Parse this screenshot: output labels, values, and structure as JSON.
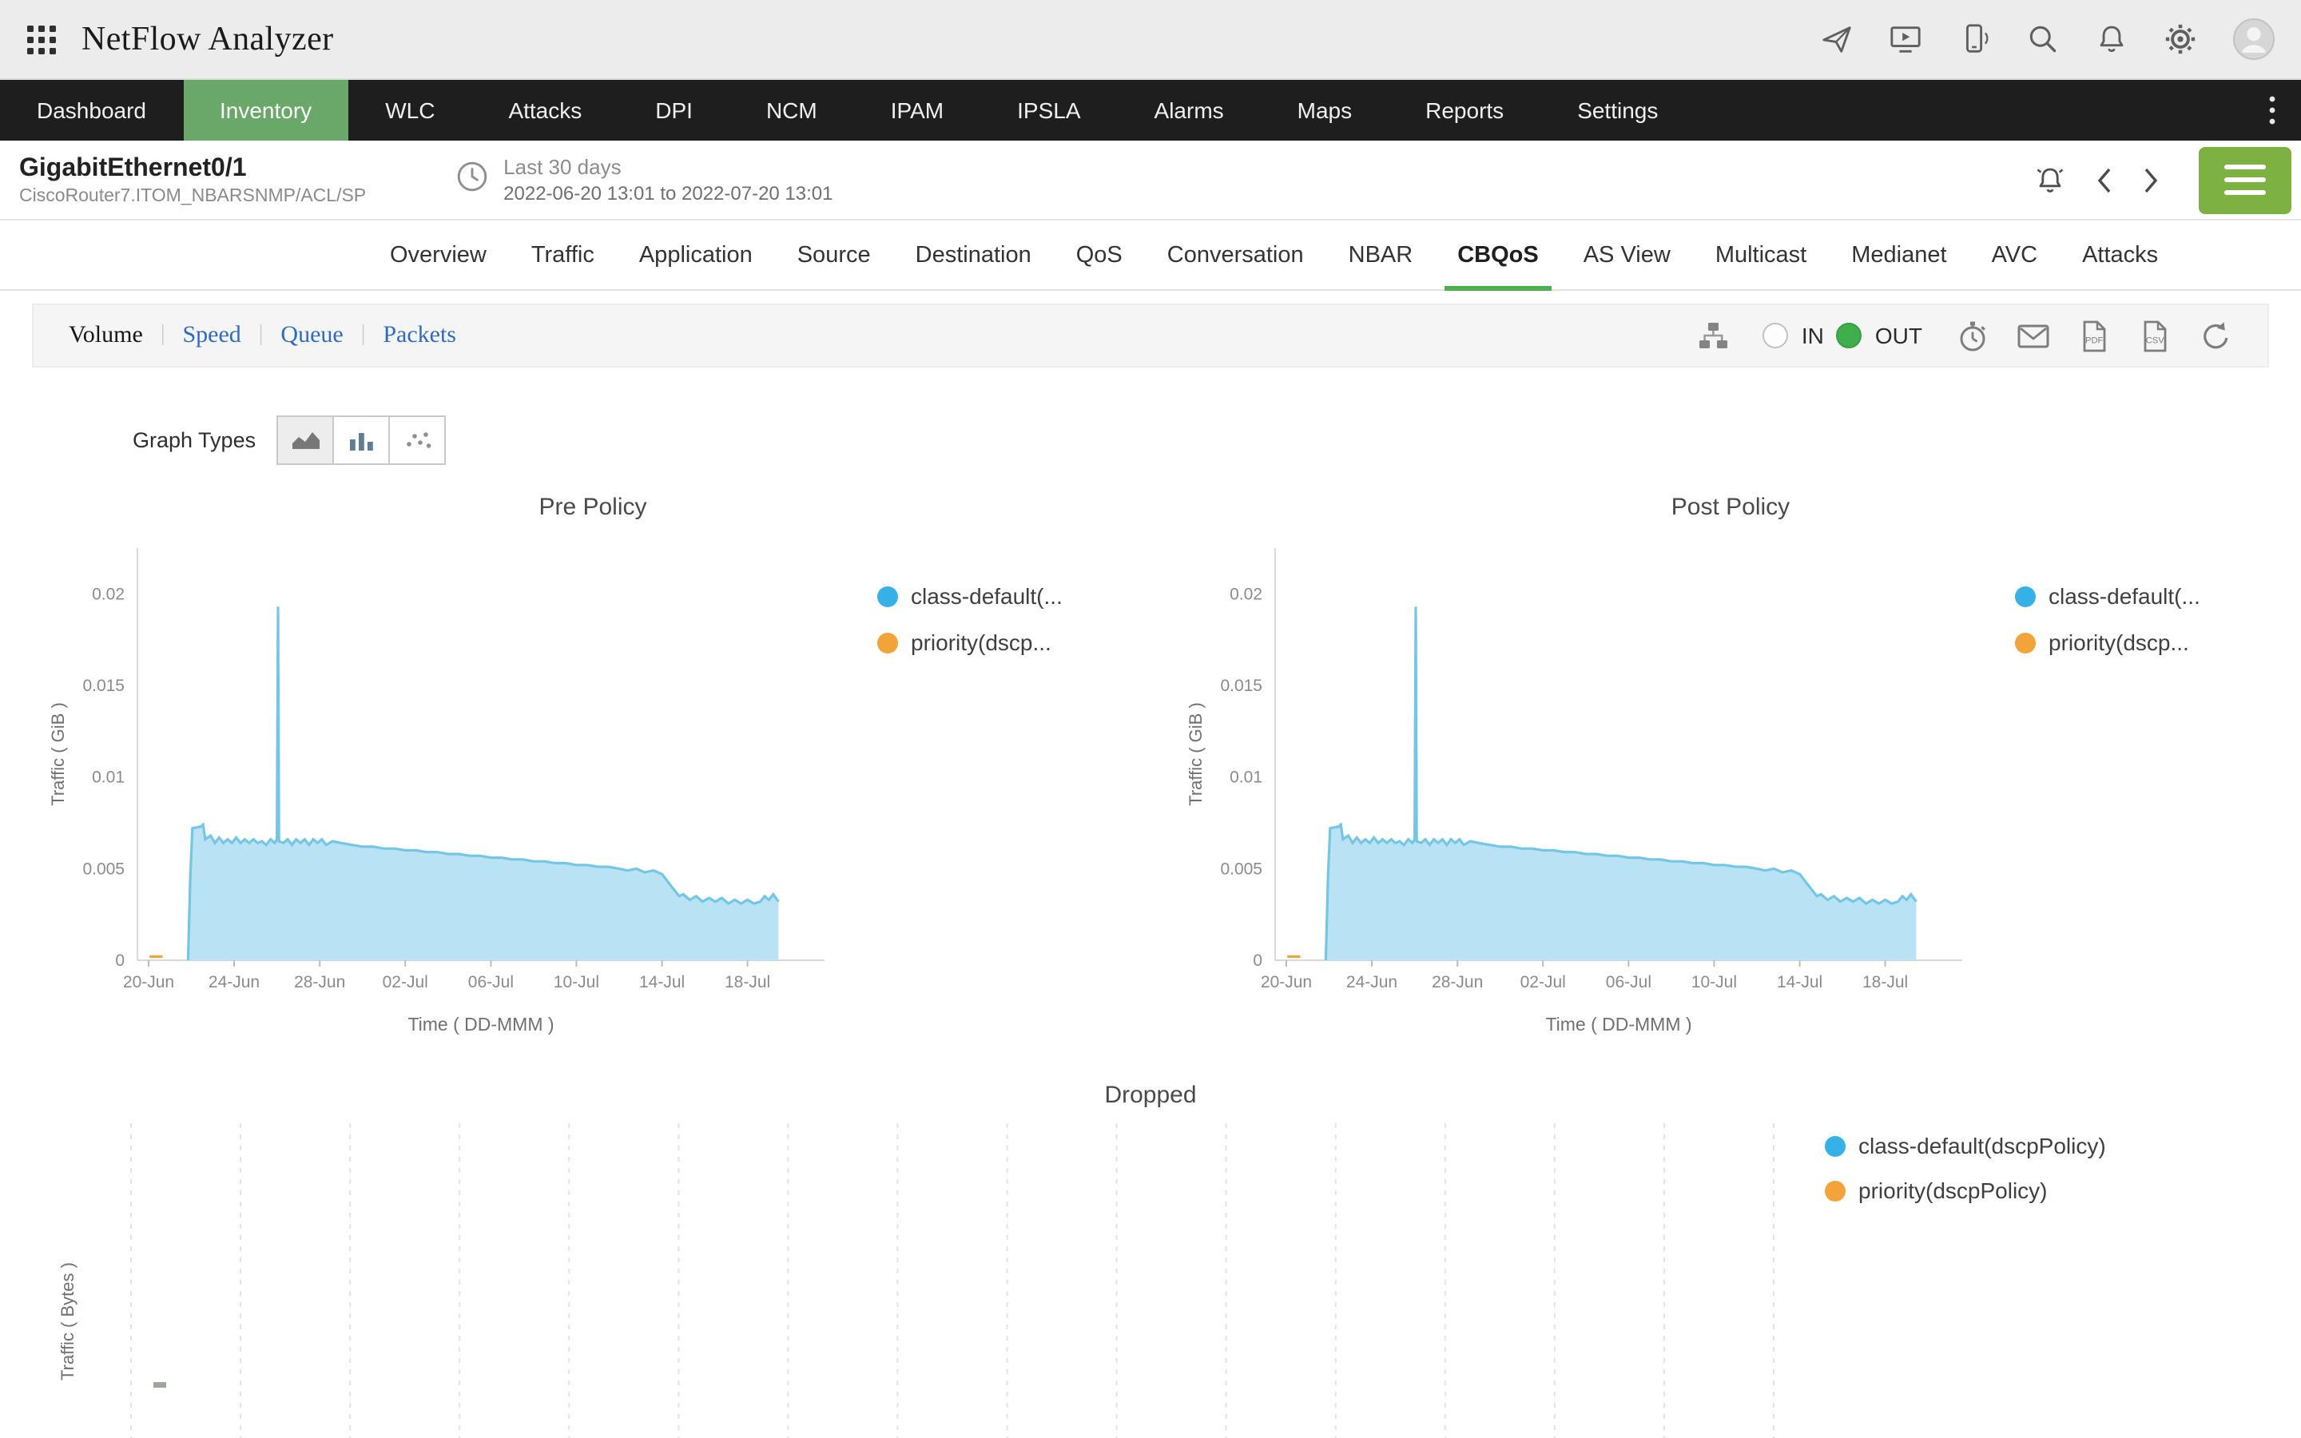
{
  "header": {
    "app_title": "NetFlow Analyzer",
    "icons": [
      "apps-grid",
      "send",
      "screen-share",
      "mobile",
      "search",
      "notifications",
      "settings",
      "user-avatar"
    ]
  },
  "nav": {
    "items": [
      {
        "label": "Dashboard",
        "active": false
      },
      {
        "label": "Inventory",
        "active": true
      },
      {
        "label": "WLC",
        "active": false
      },
      {
        "label": "Attacks",
        "active": false
      },
      {
        "label": "DPI",
        "active": false
      },
      {
        "label": "NCM",
        "active": false
      },
      {
        "label": "IPAM",
        "active": false
      },
      {
        "label": "IPSLA",
        "active": false
      },
      {
        "label": "Alarms",
        "active": false
      },
      {
        "label": "Maps",
        "active": false
      },
      {
        "label": "Reports",
        "active": false
      },
      {
        "label": "Settings",
        "active": false
      }
    ]
  },
  "subheader": {
    "interface_name": "GigabitEthernet0/1",
    "device_path": "CiscoRouter7.ITOM_NBARSNMP/ACL/SP",
    "time_range_label": "Last 30 days",
    "time_range_detail": "2022-06-20 13:01 to 2022-07-20 13:01"
  },
  "tabs": {
    "items": [
      {
        "label": "Overview",
        "active": false
      },
      {
        "label": "Traffic",
        "active": false
      },
      {
        "label": "Application",
        "active": false
      },
      {
        "label": "Source",
        "active": false
      },
      {
        "label": "Destination",
        "active": false
      },
      {
        "label": "QoS",
        "active": false
      },
      {
        "label": "Conversation",
        "active": false
      },
      {
        "label": "NBAR",
        "active": false
      },
      {
        "label": "CBQoS",
        "active": true
      },
      {
        "label": "AS View",
        "active": false
      },
      {
        "label": "Multicast",
        "active": false
      },
      {
        "label": "Medianet",
        "active": false
      },
      {
        "label": "AVC",
        "active": false
      },
      {
        "label": "Attacks",
        "active": false
      }
    ]
  },
  "toolbar": {
    "metrics": [
      {
        "label": "Volume",
        "active": true
      },
      {
        "label": "Speed",
        "active": false
      },
      {
        "label": "Queue",
        "active": false
      },
      {
        "label": "Packets",
        "active": false
      }
    ],
    "direction": {
      "in_label": "IN",
      "out_label": "OUT",
      "selected": "OUT"
    }
  },
  "graph_types_label": "Graph Types",
  "colors": {
    "accent_green": "#69a869",
    "tab_underline": "#4caf50",
    "series_blue": "#35b1e7",
    "series_blue_fill": "#b9e3f4",
    "series_orange": "#f2a33a",
    "link_blue": "#2f6bc4"
  },
  "chart_data": [
    {
      "type": "area",
      "title": "Pre Policy",
      "xlabel": "Time ( DD-MMM )",
      "ylabel": "Traffic ( GiB )",
      "ylim": [
        0,
        0.0225
      ],
      "grid": "off",
      "legend_position": "right",
      "yticks": [
        {
          "v": 0,
          "label": "0"
        },
        {
          "v": 0.005,
          "label": "0.005"
        },
        {
          "v": 0.01,
          "label": "0.01"
        },
        {
          "v": 0.015,
          "label": "0.015"
        },
        {
          "v": 0.02,
          "label": "0.02"
        }
      ],
      "xticks": [
        {
          "v": 0,
          "label": "20-Jun"
        },
        {
          "v": 4,
          "label": "24-Jun"
        },
        {
          "v": 8,
          "label": "28-Jun"
        },
        {
          "v": 12,
          "label": "02-Jul"
        },
        {
          "v": 16,
          "label": "06-Jul"
        },
        {
          "v": 20,
          "label": "10-Jul"
        },
        {
          "v": 24,
          "label": "14-Jul"
        },
        {
          "v": 28,
          "label": "18-Jul"
        }
      ],
      "legend": [
        {
          "label": "class-default(...",
          "color": "#35b1e7"
        },
        {
          "label": "priority(dscp...",
          "color": "#f2a33a"
        }
      ],
      "series": [
        {
          "name": "class-default",
          "color": "#74c6e6",
          "fill": "#b9e3f4",
          "points": [
            [
              1.85,
              0
            ],
            [
              1.95,
              0.0046
            ],
            [
              2.05,
              0.0072
            ],
            [
              2.45,
              0.0073
            ],
            [
              2.55,
              0.0074
            ],
            [
              2.65,
              0.0066
            ],
            [
              2.9,
              0.0068
            ],
            [
              3.1,
              0.0064
            ],
            [
              3.3,
              0.0067
            ],
            [
              3.5,
              0.0064
            ],
            [
              3.7,
              0.0066
            ],
            [
              3.9,
              0.0064
            ],
            [
              4.1,
              0.0067
            ],
            [
              4.3,
              0.0064
            ],
            [
              4.5,
              0.0066
            ],
            [
              4.7,
              0.0064
            ],
            [
              4.9,
              0.0066
            ],
            [
              5.1,
              0.0064
            ],
            [
              5.3,
              0.0065
            ],
            [
              5.5,
              0.0063
            ],
            [
              5.7,
              0.0066
            ],
            [
              5.9,
              0.0064
            ],
            [
              6,
              0.0066
            ],
            [
              6.05,
              0.0193
            ],
            [
              6.1,
              0.0065
            ],
            [
              6.3,
              0.0064
            ],
            [
              6.5,
              0.0066
            ],
            [
              6.7,
              0.0063
            ],
            [
              6.9,
              0.0066
            ],
            [
              7.1,
              0.0064
            ],
            [
              7.3,
              0.0066
            ],
            [
              7.5,
              0.0063
            ],
            [
              7.7,
              0.0066
            ],
            [
              7.9,
              0.0064
            ],
            [
              8.1,
              0.0066
            ],
            [
              8.3,
              0.0063
            ],
            [
              8.6,
              0.0065
            ],
            [
              9,
              0.0064
            ],
            [
              9.5,
              0.0063
            ],
            [
              10,
              0.0062
            ],
            [
              10.5,
              0.0062
            ],
            [
              11,
              0.0061
            ],
            [
              11.5,
              0.0061
            ],
            [
              12,
              0.006
            ],
            [
              12.5,
              0.006
            ],
            [
              13,
              0.0059
            ],
            [
              13.5,
              0.0059
            ],
            [
              14,
              0.0058
            ],
            [
              14.5,
              0.0058
            ],
            [
              15,
              0.0057
            ],
            [
              15.5,
              0.0057
            ],
            [
              16,
              0.0056
            ],
            [
              16.5,
              0.0056
            ],
            [
              17,
              0.0055
            ],
            [
              17.5,
              0.0055
            ],
            [
              18,
              0.0054
            ],
            [
              18.5,
              0.0054
            ],
            [
              19,
              0.0053
            ],
            [
              19.5,
              0.0053
            ],
            [
              20,
              0.0052
            ],
            [
              20.5,
              0.0052
            ],
            [
              21,
              0.0051
            ],
            [
              21.5,
              0.0051
            ],
            [
              22,
              0.005
            ],
            [
              22.4,
              0.0049
            ],
            [
              22.8,
              0.005
            ],
            [
              23.2,
              0.0048
            ],
            [
              23.6,
              0.0049
            ],
            [
              24,
              0.0047
            ],
            [
              24.2,
              0.0044
            ],
            [
              24.4,
              0.0041
            ],
            [
              24.6,
              0.0038
            ],
            [
              24.8,
              0.0035
            ],
            [
              25,
              0.0036
            ],
            [
              25.3,
              0.0033
            ],
            [
              25.6,
              0.0035
            ],
            [
              25.9,
              0.0032
            ],
            [
              26.2,
              0.0034
            ],
            [
              26.5,
              0.0032
            ],
            [
              26.8,
              0.0034
            ],
            [
              27.1,
              0.0031
            ],
            [
              27.4,
              0.0033
            ],
            [
              27.7,
              0.0031
            ],
            [
              28,
              0.0033
            ],
            [
              28.3,
              0.0031
            ],
            [
              28.6,
              0.0032
            ],
            [
              28.8,
              0.0035
            ],
            [
              29,
              0.0033
            ],
            [
              29.2,
              0.0036
            ],
            [
              29.45,
              0.0032
            ]
          ]
        },
        {
          "name": "priority",
          "color": "#f2a33a",
          "fill": null,
          "points": [
            [
              0.05,
              0.0002
            ],
            [
              0.65,
              0.0002
            ]
          ]
        }
      ]
    },
    {
      "type": "area",
      "title": "Post Policy",
      "xlabel": "Time ( DD-MMM )",
      "ylabel": "Traffic ( GiB )",
      "ylim": [
        0,
        0.0225
      ],
      "grid": "off",
      "legend_position": "right",
      "yticks": [
        {
          "v": 0,
          "label": "0"
        },
        {
          "v": 0.005,
          "label": "0.005"
        },
        {
          "v": 0.01,
          "label": "0.01"
        },
        {
          "v": 0.015,
          "label": "0.015"
        },
        {
          "v": 0.02,
          "label": "0.02"
        }
      ],
      "xticks": [
        {
          "v": 0,
          "label": "20-Jun"
        },
        {
          "v": 4,
          "label": "24-Jun"
        },
        {
          "v": 8,
          "label": "28-Jun"
        },
        {
          "v": 12,
          "label": "02-Jul"
        },
        {
          "v": 16,
          "label": "06-Jul"
        },
        {
          "v": 20,
          "label": "10-Jul"
        },
        {
          "v": 24,
          "label": "14-Jul"
        },
        {
          "v": 28,
          "label": "18-Jul"
        }
      ],
      "legend": [
        {
          "label": "class-default(...",
          "color": "#35b1e7"
        },
        {
          "label": "priority(dscp...",
          "color": "#f2a33a"
        }
      ],
      "series": [
        {
          "name": "class-default",
          "color": "#74c6e6",
          "fill": "#b9e3f4",
          "points": [
            [
              1.85,
              0
            ],
            [
              1.95,
              0.0046
            ],
            [
              2.05,
              0.0072
            ],
            [
              2.45,
              0.0073
            ],
            [
              2.55,
              0.0074
            ],
            [
              2.65,
              0.0066
            ],
            [
              2.9,
              0.0068
            ],
            [
              3.1,
              0.0064
            ],
            [
              3.3,
              0.0067
            ],
            [
              3.5,
              0.0064
            ],
            [
              3.7,
              0.0066
            ],
            [
              3.9,
              0.0064
            ],
            [
              4.1,
              0.0067
            ],
            [
              4.3,
              0.0064
            ],
            [
              4.5,
              0.0066
            ],
            [
              4.7,
              0.0064
            ],
            [
              4.9,
              0.0066
            ],
            [
              5.1,
              0.0064
            ],
            [
              5.3,
              0.0065
            ],
            [
              5.5,
              0.0063
            ],
            [
              5.7,
              0.0066
            ],
            [
              5.9,
              0.0064
            ],
            [
              6,
              0.0066
            ],
            [
              6.05,
              0.0193
            ],
            [
              6.1,
              0.0065
            ],
            [
              6.3,
              0.0064
            ],
            [
              6.5,
              0.0066
            ],
            [
              6.7,
              0.0063
            ],
            [
              6.9,
              0.0066
            ],
            [
              7.1,
              0.0064
            ],
            [
              7.3,
              0.0066
            ],
            [
              7.5,
              0.0063
            ],
            [
              7.7,
              0.0066
            ],
            [
              7.9,
              0.0064
            ],
            [
              8.1,
              0.0066
            ],
            [
              8.3,
              0.0063
            ],
            [
              8.6,
              0.0065
            ],
            [
              9,
              0.0064
            ],
            [
              9.5,
              0.0063
            ],
            [
              10,
              0.0062
            ],
            [
              10.5,
              0.0062
            ],
            [
              11,
              0.0061
            ],
            [
              11.5,
              0.0061
            ],
            [
              12,
              0.006
            ],
            [
              12.5,
              0.006
            ],
            [
              13,
              0.0059
            ],
            [
              13.5,
              0.0059
            ],
            [
              14,
              0.0058
            ],
            [
              14.5,
              0.0058
            ],
            [
              15,
              0.0057
            ],
            [
              15.5,
              0.0057
            ],
            [
              16,
              0.0056
            ],
            [
              16.5,
              0.0056
            ],
            [
              17,
              0.0055
            ],
            [
              17.5,
              0.0055
            ],
            [
              18,
              0.0054
            ],
            [
              18.5,
              0.0054
            ],
            [
              19,
              0.0053
            ],
            [
              19.5,
              0.0053
            ],
            [
              20,
              0.0052
            ],
            [
              20.5,
              0.0052
            ],
            [
              21,
              0.0051
            ],
            [
              21.5,
              0.0051
            ],
            [
              22,
              0.005
            ],
            [
              22.4,
              0.0049
            ],
            [
              22.8,
              0.005
            ],
            [
              23.2,
              0.0048
            ],
            [
              23.6,
              0.0049
            ],
            [
              24,
              0.0047
            ],
            [
              24.2,
              0.0044
            ],
            [
              24.4,
              0.0041
            ],
            [
              24.6,
              0.0038
            ],
            [
              24.8,
              0.0035
            ],
            [
              25,
              0.0036
            ],
            [
              25.3,
              0.0033
            ],
            [
              25.6,
              0.0035
            ],
            [
              25.9,
              0.0032
            ],
            [
              26.2,
              0.0034
            ],
            [
              26.5,
              0.0032
            ],
            [
              26.8,
              0.0034
            ],
            [
              27.1,
              0.0031
            ],
            [
              27.4,
              0.0033
            ],
            [
              27.7,
              0.0031
            ],
            [
              28,
              0.0033
            ],
            [
              28.3,
              0.0031
            ],
            [
              28.6,
              0.0032
            ],
            [
              28.8,
              0.0035
            ],
            [
              29,
              0.0033
            ],
            [
              29.2,
              0.0036
            ],
            [
              29.45,
              0.0032
            ]
          ]
        },
        {
          "name": "priority",
          "color": "#f2a33a",
          "fill": null,
          "points": [
            [
              0.05,
              0.0002
            ],
            [
              0.65,
              0.0002
            ]
          ]
        }
      ]
    },
    {
      "type": "area",
      "title": "Dropped",
      "xlabel": "",
      "ylabel": "Traffic ( Bytes )",
      "grid": "vertical-dashed",
      "legend_position": "right",
      "legend": [
        {
          "label": "class-default(dscpPolicy)",
          "color": "#35b1e7"
        },
        {
          "label": "priority(dscpPolicy)",
          "color": "#f2a33a"
        }
      ],
      "series": []
    }
  ]
}
